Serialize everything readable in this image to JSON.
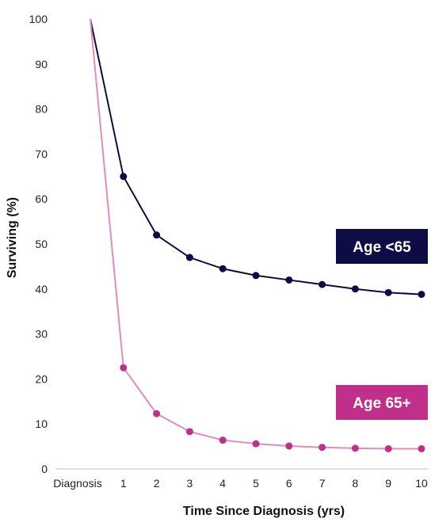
{
  "chart_data": {
    "type": "line",
    "x": [
      "Diagnosis",
      "1",
      "2",
      "3",
      "4",
      "5",
      "6",
      "7",
      "8",
      "9",
      "10"
    ],
    "xlabel": "Time Since Diagnosis (yrs)",
    "ylabel": "Surviving (%)",
    "ylim": [
      0,
      100
    ],
    "yticks": [
      0,
      10,
      20,
      30,
      40,
      50,
      60,
      70,
      80,
      90,
      100
    ],
    "grid": false,
    "series": [
      {
        "name": "Age <65",
        "color": "#0d0c45",
        "values": [
          100,
          65,
          52,
          47,
          44.5,
          43,
          42,
          41,
          40,
          39.2,
          38.8
        ]
      },
      {
        "name": "Age 65+",
        "color": "#e28bbd",
        "marker_color": "#c0308a",
        "label_bg": "#c0308a",
        "values": [
          100,
          22.5,
          12.3,
          8.3,
          6.4,
          5.6,
          5.1,
          4.8,
          4.6,
          4.5,
          4.5
        ]
      }
    ]
  }
}
